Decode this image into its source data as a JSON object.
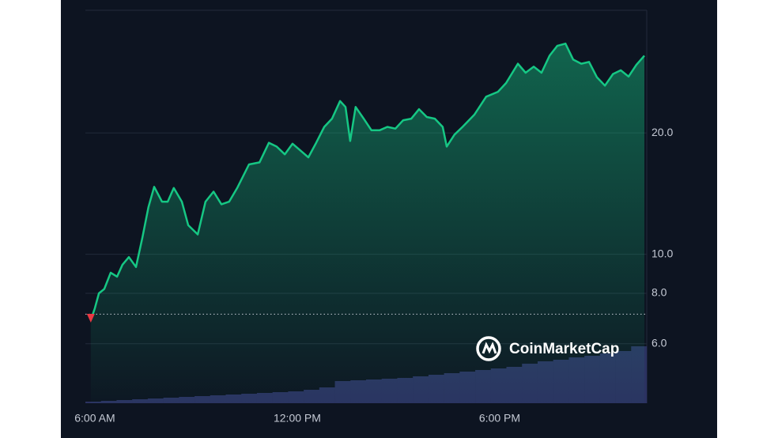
{
  "chart_data": {
    "type": "line",
    "log_y": true,
    "grid": true,
    "logo": "CoinMarketCap",
    "series": [
      {
        "color": "#16c784",
        "x": [
          5.88,
          6.0,
          6.12,
          6.28,
          6.47,
          6.66,
          6.82,
          7.01,
          7.22,
          7.41,
          7.59,
          7.76,
          7.99,
          8.16,
          8.34,
          8.58,
          8.77,
          9.05,
          9.28,
          9.52,
          9.75,
          9.98,
          10.22,
          10.57,
          10.88,
          11.16,
          11.39,
          11.63,
          11.86,
          12.09,
          12.33,
          12.56,
          12.8,
          13.03,
          13.27,
          13.43,
          13.57,
          13.73,
          13.97,
          14.2,
          14.44,
          14.67,
          14.91,
          15.14,
          15.38,
          15.61,
          15.84,
          16.08,
          16.31,
          16.43,
          16.66,
          16.9,
          17.25,
          17.6,
          17.95,
          18.19,
          18.54,
          18.77,
          19.01,
          19.24,
          19.48,
          19.71,
          19.95,
          20.18,
          20.42,
          20.65,
          20.88,
          21.12,
          21.36,
          21.59,
          21.82,
          22.05,
          22.29
        ],
        "values": [
          6.86,
          7.34,
          8.0,
          8.2,
          9.0,
          8.8,
          9.42,
          9.84,
          9.3,
          11.0,
          13.1,
          14.7,
          13.5,
          13.5,
          14.6,
          13.5,
          11.8,
          11.2,
          13.5,
          14.3,
          13.3,
          13.5,
          14.6,
          16.7,
          16.9,
          18.9,
          18.5,
          17.7,
          18.8,
          18.1,
          17.4,
          18.9,
          20.7,
          21.7,
          24.0,
          23.2,
          19.1,
          23.2,
          21.7,
          20.3,
          20.3,
          20.7,
          20.5,
          21.5,
          21.7,
          22.9,
          21.9,
          21.7,
          20.7,
          18.5,
          19.8,
          20.7,
          22.2,
          24.6,
          25.3,
          26.6,
          29.7,
          28.2,
          29.2,
          28.2,
          31.1,
          32.9,
          33.3,
          30.4,
          29.7,
          30.0,
          27.5,
          26.2,
          28.0,
          28.6,
          27.6,
          29.5,
          31.1
        ]
      }
    ],
    "baseline": 7.1,
    "volume": {
      "color": "#2b3261",
      "values": [
        2,
        3,
        4,
        5,
        6,
        7,
        8,
        9,
        10,
        11,
        12,
        13,
        14,
        15,
        17,
        20,
        28,
        29,
        30,
        31,
        32,
        34,
        36,
        38,
        40,
        42,
        44,
        46,
        50,
        53,
        55,
        58,
        60,
        63,
        66,
        72
      ]
    },
    "xlim": [
      5.72,
      22.36
    ],
    "xticks": [
      {
        "value": 6,
        "label": "6:00 AM"
      },
      {
        "value": 12,
        "label": "12:00 PM"
      },
      {
        "value": 18,
        "label": "6:00 PM"
      }
    ],
    "ylim": [
      4.27,
      40.3
    ],
    "yticks": [
      {
        "value": 6,
        "label": "6.0"
      },
      {
        "value": 8,
        "label": "8.0"
      },
      {
        "value": 10,
        "label": "10.0"
      },
      {
        "value": 20,
        "label": "20.0"
      }
    ]
  }
}
